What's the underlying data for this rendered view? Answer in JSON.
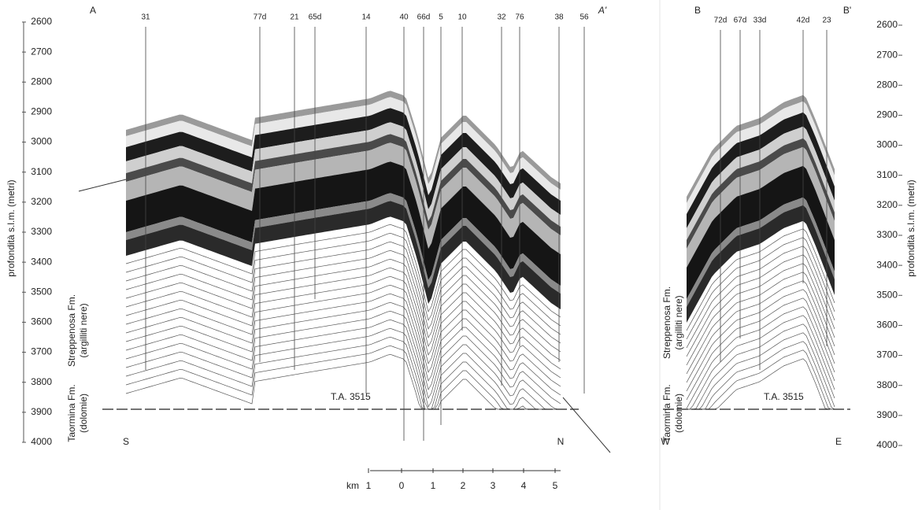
{
  "depth_axis_left": {
    "label": "profondità s.l.m. (metri)",
    "ticks": [
      2600,
      2700,
      2800,
      2900,
      3000,
      3100,
      3200,
      3300,
      3400,
      3500,
      3600,
      3700,
      3800,
      3900,
      4000
    ]
  },
  "depth_axis_right": {
    "label": "profondità s.l.m. (metri)",
    "ticks": [
      2600,
      2700,
      2800,
      2900,
      3000,
      3100,
      3200,
      3300,
      3400,
      3500,
      3600,
      3700,
      3800,
      3900,
      4000
    ]
  },
  "section_a": {
    "start": "A",
    "end": "A'",
    "wells": [
      "31",
      "77d",
      "21",
      "65d",
      "14",
      "40",
      "66d",
      "5",
      "10",
      "32",
      "76",
      "38",
      "56"
    ],
    "left_end": "S",
    "right_end": "N",
    "marker": "T.A. 3515",
    "formation_upper": "Streppenosa Fm.",
    "formation_upper_note": "(argilliti nere)",
    "formation_lower": "Taormina Fm.",
    "formation_lower_note": "(dolomie)"
  },
  "section_b": {
    "start": "B",
    "end": "B'",
    "wells": [
      "72d",
      "67d",
      "33d",
      "42d",
      "23"
    ],
    "left_end": "W",
    "right_end": "E",
    "marker": "T.A. 3515",
    "formation_upper": "Streppenosa Fm.",
    "formation_upper_note": "(argilliti nere)",
    "formation_lower": "Taormina Fm.",
    "formation_lower_note": "(dolomie)"
  },
  "scale_bar": {
    "unit": "km",
    "labels": [
      "1",
      "0",
      "1",
      "2",
      "3",
      "4",
      "5"
    ]
  }
}
